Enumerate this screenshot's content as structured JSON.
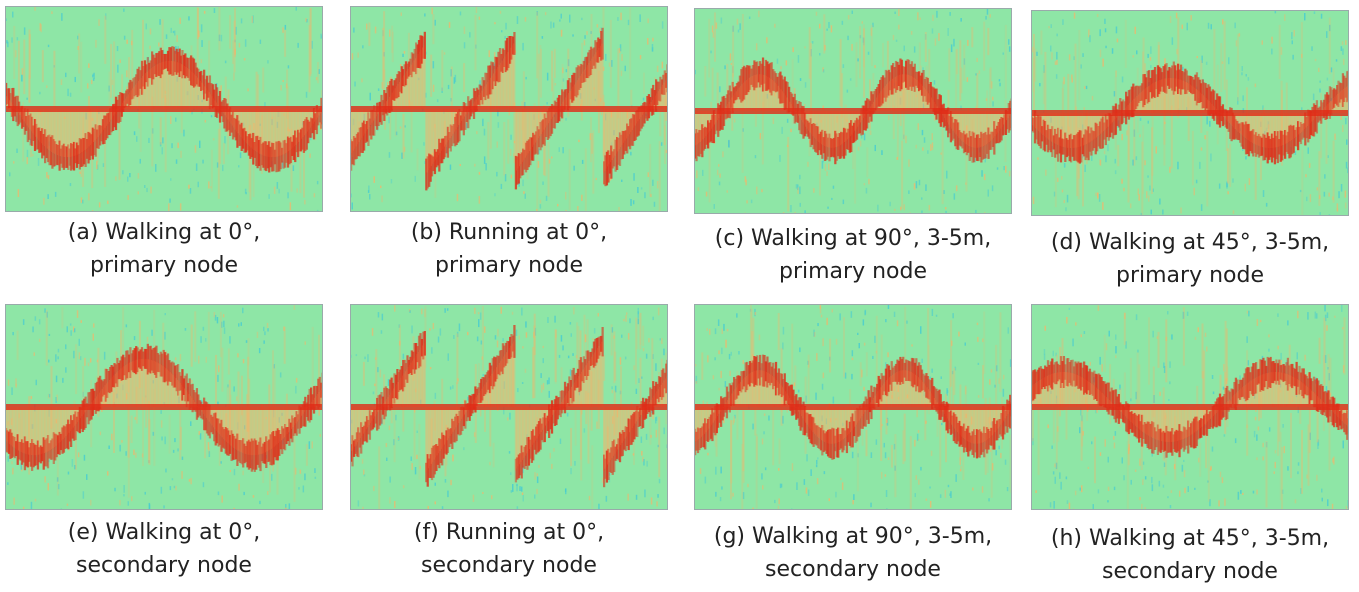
{
  "figure": {
    "panels": [
      {
        "id": "a",
        "line1": "(a) Walking at 0°,",
        "line2": "primary node",
        "activity": "walking",
        "pattern": "walk0",
        "color_accent": "#e8341c"
      },
      {
        "id": "b",
        "line1": "(b) Running at 0°,",
        "line2": "primary node",
        "activity": "running",
        "pattern": "run",
        "color_accent": "#e8341c"
      },
      {
        "id": "c",
        "line1": "(c) Walking at 90°, 3-5m,",
        "line2": "primary node",
        "activity": "walking",
        "pattern": "walk90",
        "color_accent": "#e8341c"
      },
      {
        "id": "d",
        "line1": "(d) Walking at 45°, 3-5m,",
        "line2": "primary node",
        "activity": "walking",
        "pattern": "walk45",
        "color_accent": "#e8341c"
      },
      {
        "id": "e",
        "line1": "(e) Walking at 0°,",
        "line2": "secondary node",
        "activity": "walking",
        "pattern": "walk0b",
        "color_accent": "#e8341c"
      },
      {
        "id": "f",
        "line1": "(f) Running at 0°,",
        "line2": "secondary node",
        "activity": "running",
        "pattern": "run",
        "color_accent": "#e8341c"
      },
      {
        "id": "g",
        "line1": "(g) Walking at 90°, 3-5m,",
        "line2": "secondary node",
        "activity": "walking",
        "pattern": "walk90",
        "color_accent": "#e8341c"
      },
      {
        "id": "h",
        "line1": "(h) Walking at 45°, 3-5m,",
        "line2": "secondary node",
        "activity": "walking",
        "pattern": "walk45b",
        "color_accent": "#e8341c"
      }
    ],
    "colors": {
      "background": "#8ee6a6",
      "noise_low": "#3fc9d6",
      "signal_mid": "#f5b46a",
      "signal_high": "#e02a16"
    }
  }
}
